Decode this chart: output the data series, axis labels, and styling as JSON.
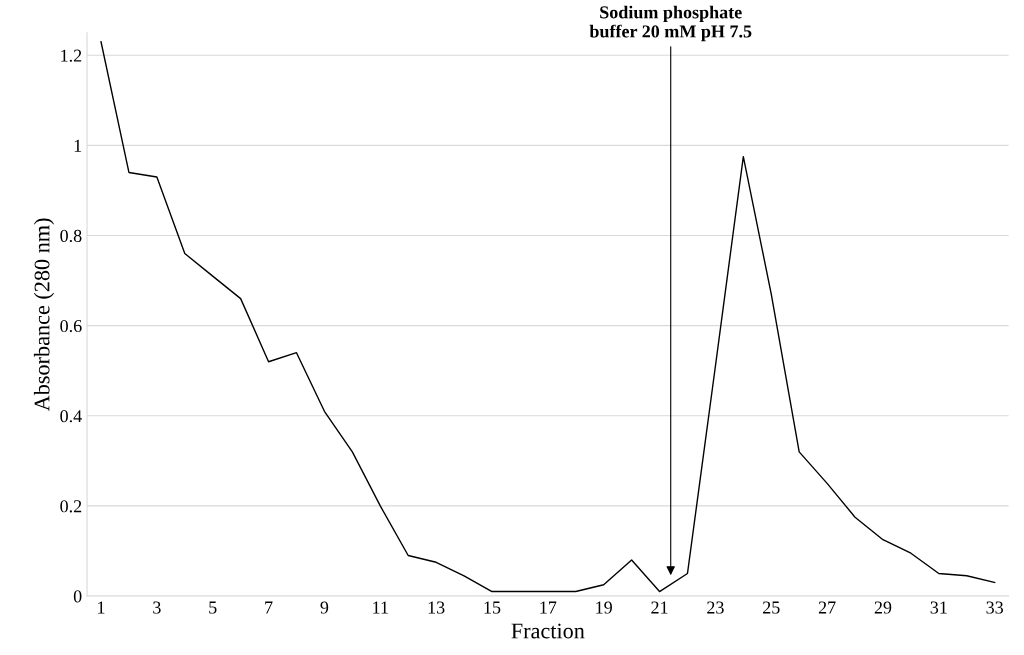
{
  "chart_data": {
    "type": "line",
    "xlabel": "Fraction",
    "ylabel": "Absorbance (280 nm)",
    "x": [
      1,
      2,
      3,
      4,
      5,
      6,
      7,
      8,
      9,
      10,
      11,
      12,
      13,
      14,
      15,
      16,
      17,
      18,
      19,
      20,
      21,
      22,
      23,
      24,
      25,
      26,
      27,
      28,
      29,
      30,
      31,
      32,
      33
    ],
    "series": [
      {
        "color": "#000000",
        "values": [
          1.23,
          0.94,
          0.93,
          0.76,
          0.71,
          0.66,
          0.52,
          0.54,
          0.41,
          0.32,
          0.2,
          0.09,
          0.075,
          0.045,
          0.01,
          0.01,
          0.01,
          0.01,
          0.025,
          0.08,
          0.01,
          0.05,
          0.51,
          0.975,
          0.67,
          0.32,
          0.25,
          0.175,
          0.125,
          0.095,
          0.05,
          0.045,
          0.03
        ]
      }
    ],
    "xlim": [
      0.5,
      33.5
    ],
    "xticks": [
      1,
      3,
      5,
      7,
      9,
      11,
      13,
      15,
      17,
      19,
      21,
      23,
      25,
      27,
      29,
      31,
      33
    ],
    "ylim": [
      0,
      1.25
    ],
    "yticks": [
      0,
      0.2,
      0.4,
      0.6,
      0.8,
      {
        "value": 1,
        "label": "1"
      },
      1.2
    ],
    "grid": "y",
    "marker": "none",
    "line_style": "solid",
    "legend": false,
    "annotations": [
      {
        "text": "Sodium phosphate\nbuffer 20 mM pH 7.5",
        "x": 21.4,
        "y": 0.04
      }
    ]
  }
}
